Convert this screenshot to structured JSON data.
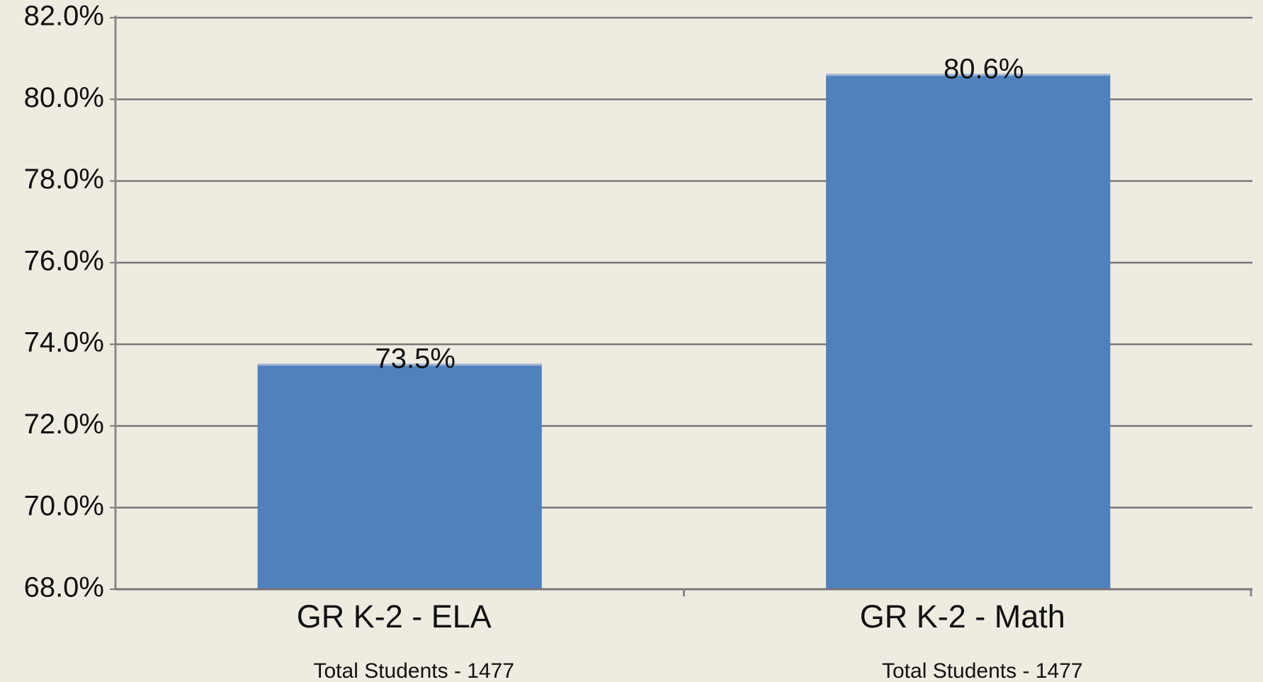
{
  "chart_data": {
    "type": "bar",
    "categories": [
      "GR K-2 - ELA",
      "GR K-2 - Math"
    ],
    "values": [
      73.5,
      80.6
    ],
    "value_labels": [
      "73.5%",
      "80.6%"
    ],
    "annotations": [
      "Total Students - 1477",
      "Total Students - 1477"
    ],
    "color": "#4f81bd",
    "ylim": [
      68,
      82
    ],
    "yticks": [
      {
        "value": 68,
        "label": "68.0%"
      },
      {
        "value": 70,
        "label": "70.0%"
      },
      {
        "value": 72,
        "label": "72.0%"
      },
      {
        "value": 74,
        "label": "74.0%"
      },
      {
        "value": 76,
        "label": "76.0%"
      },
      {
        "value": 78,
        "label": "78.0%"
      },
      {
        "value": 80,
        "label": "80.0%"
      },
      {
        "value": 82,
        "label": "82.0%"
      }
    ],
    "grid": true
  }
}
